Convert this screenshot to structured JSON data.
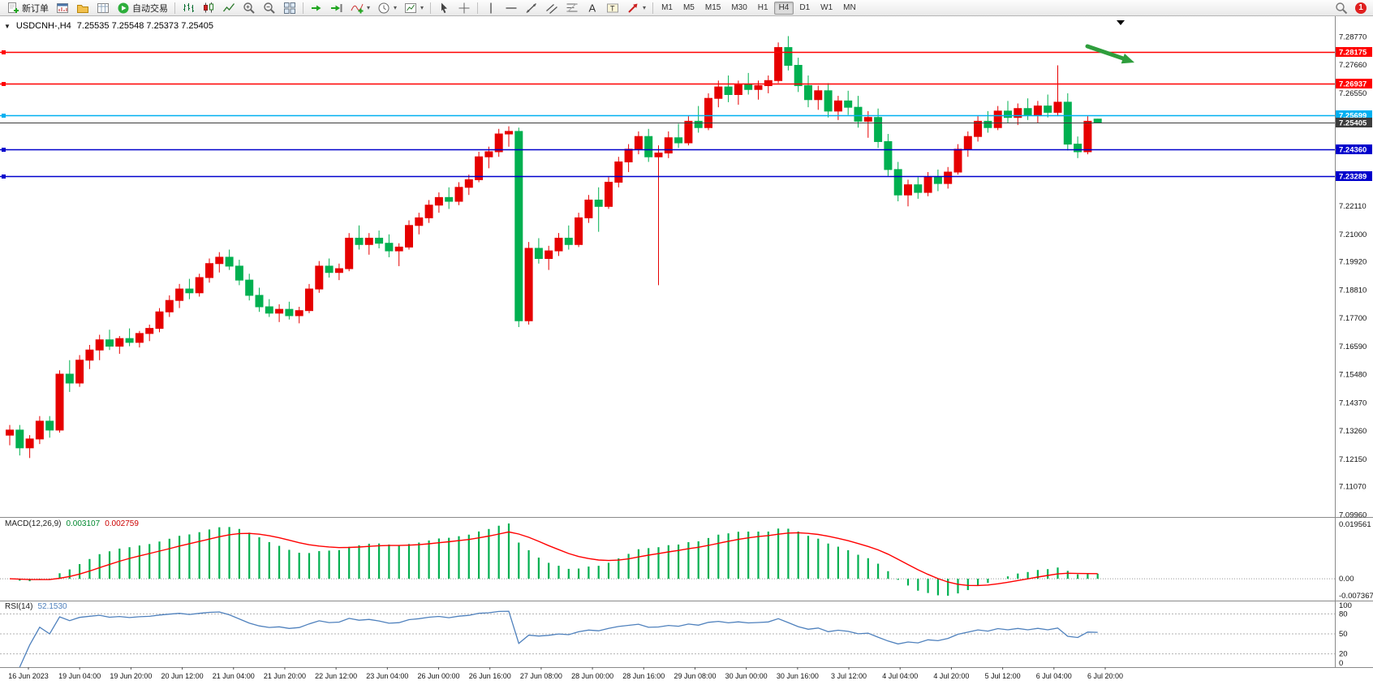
{
  "toolbar": {
    "groups": [
      {
        "items": [
          {
            "name": "new-order",
            "glyph": "doc-plus",
            "label": "新订单"
          },
          {
            "name": "charts",
            "glyph": "chart-window"
          },
          {
            "name": "profiles",
            "glyph": "folder"
          },
          {
            "name": "data-window",
            "glyph": "grid-window"
          },
          {
            "name": "autotrading",
            "glyph": "play",
            "label": "自动交易"
          }
        ]
      },
      {
        "items": [
          {
            "name": "bar-chart",
            "glyph": "bars"
          },
          {
            "name": "candlestick-chart",
            "glyph": "candles"
          },
          {
            "name": "line-chart",
            "glyph": "polyline"
          },
          {
            "name": "zoom-in",
            "glyph": "zoom-plus"
          },
          {
            "name": "zoom-out",
            "glyph": "zoom-minus"
          },
          {
            "name": "tile-windows",
            "glyph": "tiles"
          }
        ]
      },
      {
        "items": [
          {
            "name": "auto-scroll",
            "glyph": "scroll-arrow"
          },
          {
            "name": "chart-shift",
            "glyph": "shift-arrow"
          },
          {
            "name": "indicators",
            "glyph": "indicator-plus",
            "dropdown": true
          },
          {
            "name": "periods",
            "glyph": "clock",
            "dropdown": true
          },
          {
            "name": "templates",
            "glyph": "template",
            "dropdown": true
          }
        ]
      },
      {
        "items": [
          {
            "name": "cursor",
            "glyph": "cursor"
          },
          {
            "name": "crosshair",
            "glyph": "crosshair"
          }
        ]
      },
      {
        "items": [
          {
            "name": "vertical-line",
            "glyph": "vline"
          },
          {
            "name": "horizontal-line",
            "glyph": "hline"
          },
          {
            "name": "trendline",
            "glyph": "tline"
          },
          {
            "name": "equidistant-channel",
            "glyph": "channel"
          },
          {
            "name": "fibonacci",
            "glyph": "fibo"
          },
          {
            "name": "text",
            "glyph": "text"
          },
          {
            "name": "text-label",
            "glyph": "text-label"
          },
          {
            "name": "arrows",
            "glyph": "arrow",
            "dropdown": true
          }
        ]
      }
    ],
    "timeframes": [
      "M1",
      "M5",
      "M15",
      "M30",
      "H1",
      "H4",
      "D1",
      "W1",
      "MN"
    ],
    "active_timeframe": "H4",
    "notification_count": "1"
  },
  "chart": {
    "title": "USDCNH-,H4",
    "ohlc": "7.25535 7.25548 7.25373 7.25405"
  },
  "chart_data": {
    "type": "candlestick",
    "symbol": "USDCNH-",
    "period": "H4",
    "up_color": "#e60000",
    "down_color": "#00b050",
    "price_axis": {
      "min": 7.0988,
      "max": 7.2939,
      "labels": [
        "7.28770",
        "7.27660",
        "7.26550",
        "7.22110",
        "7.21000",
        "7.19920",
        "7.18810",
        "7.17700",
        "7.16590",
        "7.15480",
        "7.14370",
        "7.13260",
        "7.12150",
        "7.11070",
        "7.09960"
      ]
    },
    "levels": [
      {
        "price": 7.28175,
        "color": "#ff0000",
        "label": "7.28175"
      },
      {
        "price": 7.26937,
        "color": "#ff0000",
        "label": "7.26937"
      },
      {
        "price": 7.25699,
        "color": "#00b0f0",
        "label": "7.25699"
      },
      {
        "price": 7.25405,
        "color": "#3c3c3c",
        "label": "7.25405",
        "type": "bid"
      },
      {
        "price": 7.2436,
        "color": "#0000cc",
        "label": "7.24360"
      },
      {
        "price": 7.23289,
        "color": "#0000cc",
        "label": "7.23289"
      }
    ],
    "annotations": {
      "trend_arrow_color": "#2e9e3c"
    },
    "indicators": [
      {
        "label": "MACD(12,26,9)",
        "value1": "0.003107",
        "value2": "0.002759",
        "axis_labels": [
          "0.019561",
          "0.00",
          "-0.007367"
        ],
        "histogram_color": "#00b050",
        "signal_color": "#ff0000"
      },
      {
        "label": "RSI(14)",
        "value1": "52.1530",
        "axis_labels": [
          "100",
          "80",
          "50",
          "20",
          "0"
        ],
        "levels": [
          80,
          50,
          20
        ],
        "line_color": "#4f81bd"
      }
    ],
    "time_labels": [
      "16 Jun 2023",
      "19 Jun 04:00",
      "19 Jun 20:00",
      "20 Jun 12:00",
      "21 Jun 04:00",
      "21 Jun 20:00",
      "22 Jun 12:00",
      "23 Jun 04:00",
      "26 Jun 00:00",
      "26 Jun 16:00",
      "27 Jun 08:00",
      "28 Jun 00:00",
      "28 Jun 16:00",
      "29 Jun 08:00",
      "30 Jun 00:00",
      "30 Jun 16:00",
      "3 Jul 12:00",
      "4 Jul 04:00",
      "4 Jul 20:00",
      "5 Jul 12:00",
      "6 Jul 04:00",
      "6 Jul 20:00"
    ],
    "candles": [
      [
        7.131,
        7.135,
        7.127,
        7.133
      ],
      [
        7.133,
        7.135,
        7.123,
        7.126
      ],
      [
        7.126,
        7.131,
        7.122,
        7.1295
      ],
      [
        7.1295,
        7.1385,
        7.1275,
        7.1365
      ],
      [
        7.1365,
        7.1385,
        7.13,
        7.133
      ],
      [
        7.133,
        7.1565,
        7.132,
        7.155
      ],
      [
        7.155,
        7.1605,
        7.148,
        7.1515
      ],
      [
        7.1515,
        7.1625,
        7.15,
        7.1605
      ],
      [
        7.1605,
        7.1665,
        7.157,
        7.1645
      ],
      [
        7.1645,
        7.1705,
        7.1605,
        7.1685
      ],
      [
        7.1685,
        7.1725,
        7.1645,
        7.166
      ],
      [
        7.166,
        7.17,
        7.163,
        7.169
      ],
      [
        7.169,
        7.173,
        7.166,
        7.1675
      ],
      [
        7.1675,
        7.172,
        7.1655,
        7.171
      ],
      [
        7.171,
        7.1745,
        7.168,
        7.173
      ],
      [
        7.173,
        7.181,
        7.1715,
        7.1795
      ],
      [
        7.1795,
        7.186,
        7.1775,
        7.184
      ],
      [
        7.184,
        7.1905,
        7.181,
        7.1885
      ],
      [
        7.1885,
        7.1925,
        7.1845,
        7.187
      ],
      [
        7.187,
        7.1945,
        7.1855,
        7.193
      ],
      [
        7.193,
        7.2005,
        7.191,
        7.1985
      ],
      [
        7.1985,
        7.203,
        7.195,
        7.201
      ],
      [
        7.201,
        7.204,
        7.196,
        7.1975
      ],
      [
        7.1975,
        7.2,
        7.19,
        7.192
      ],
      [
        7.192,
        7.1945,
        7.184,
        7.186
      ],
      [
        7.186,
        7.189,
        7.1795,
        7.1815
      ],
      [
        7.1815,
        7.1845,
        7.1775,
        7.179
      ],
      [
        7.179,
        7.1825,
        7.1755,
        7.1805
      ],
      [
        7.1805,
        7.1835,
        7.1765,
        7.178
      ],
      [
        7.178,
        7.1815,
        7.175,
        7.18
      ],
      [
        7.18,
        7.1905,
        7.179,
        7.1885
      ],
      [
        7.1885,
        7.1995,
        7.187,
        7.1975
      ],
      [
        7.1975,
        7.2005,
        7.193,
        7.195
      ],
      [
        7.195,
        7.1985,
        7.192,
        7.1965
      ],
      [
        7.1965,
        7.2105,
        7.1955,
        7.2085
      ],
      [
        7.2085,
        7.2135,
        7.204,
        7.206
      ],
      [
        7.206,
        7.2105,
        7.202,
        7.2085
      ],
      [
        7.2085,
        7.2115,
        7.2045,
        7.2065
      ],
      [
        7.2065,
        7.21,
        7.201,
        7.2035
      ],
      [
        7.2035,
        7.2065,
        7.1975,
        7.205
      ],
      [
        7.205,
        7.2155,
        7.204,
        7.2135
      ],
      [
        7.2135,
        7.2185,
        7.21,
        7.2165
      ],
      [
        7.2165,
        7.2235,
        7.2145,
        7.2215
      ],
      [
        7.2215,
        7.2265,
        7.2185,
        7.2245
      ],
      [
        7.2245,
        7.2285,
        7.22,
        7.223
      ],
      [
        7.223,
        7.2305,
        7.2215,
        7.2285
      ],
      [
        7.2285,
        7.2335,
        7.2255,
        7.2315
      ],
      [
        7.2315,
        7.2425,
        7.2305,
        7.2405
      ],
      [
        7.2405,
        7.2445,
        7.236,
        7.2425
      ],
      [
        7.2425,
        7.2515,
        7.2405,
        7.2495
      ],
      [
        7.2495,
        7.2525,
        7.2445,
        7.2505
      ],
      [
        7.2505,
        7.252,
        7.1735,
        7.176
      ],
      [
        7.176,
        7.207,
        7.1745,
        7.2045
      ],
      [
        7.2045,
        7.2085,
        7.1985,
        7.2005
      ],
      [
        7.2005,
        7.2055,
        7.196,
        7.2035
      ],
      [
        7.2035,
        7.2105,
        7.2015,
        7.2085
      ],
      [
        7.2085,
        7.2135,
        7.204,
        7.206
      ],
      [
        7.206,
        7.2185,
        7.205,
        7.2165
      ],
      [
        7.2165,
        7.2255,
        7.2145,
        7.2235
      ],
      [
        7.2235,
        7.2285,
        7.211,
        7.221
      ],
      [
        7.221,
        7.2325,
        7.22,
        7.2305
      ],
      [
        7.2305,
        7.2405,
        7.2285,
        7.2385
      ],
      [
        7.2385,
        7.2455,
        7.2345,
        7.2435
      ],
      [
        7.2435,
        7.2505,
        7.2415,
        7.2485
      ],
      [
        7.2485,
        7.2515,
        7.2385,
        7.2405
      ],
      [
        7.2405,
        7.245,
        7.19,
        7.242
      ],
      [
        7.242,
        7.2505,
        7.24,
        7.248
      ],
      [
        7.248,
        7.2535,
        7.244,
        7.246
      ],
      [
        7.246,
        7.2565,
        7.245,
        7.2545
      ],
      [
        7.2545,
        7.2605,
        7.25,
        7.252
      ],
      [
        7.252,
        7.2655,
        7.251,
        7.2635
      ],
      [
        7.2635,
        7.2705,
        7.26,
        7.268
      ],
      [
        7.268,
        7.2725,
        7.262,
        7.265
      ],
      [
        7.265,
        7.2705,
        7.261,
        7.269
      ],
      [
        7.269,
        7.2735,
        7.265,
        7.267
      ],
      [
        7.267,
        7.2705,
        7.263,
        7.2685
      ],
      [
        7.2685,
        7.2725,
        7.2655,
        7.2705
      ],
      [
        7.2705,
        7.2855,
        7.2695,
        7.2835
      ],
      [
        7.2835,
        7.288,
        7.2745,
        7.2765
      ],
      [
        7.2765,
        7.2795,
        7.266,
        7.2685
      ],
      [
        7.2685,
        7.2725,
        7.26,
        7.263
      ],
      [
        7.263,
        7.2685,
        7.259,
        7.2665
      ],
      [
        7.2665,
        7.2695,
        7.256,
        7.2585
      ],
      [
        7.2585,
        7.2645,
        7.255,
        7.2625
      ],
      [
        7.2625,
        7.2665,
        7.257,
        7.26
      ],
      [
        7.26,
        7.2645,
        7.252,
        7.2545
      ],
      [
        7.2545,
        7.2585,
        7.248,
        7.256
      ],
      [
        7.256,
        7.2595,
        7.244,
        7.2465
      ],
      [
        7.2465,
        7.2495,
        7.233,
        7.2355
      ],
      [
        7.2355,
        7.2385,
        7.223,
        7.2255
      ],
      [
        7.2255,
        7.2315,
        7.221,
        7.2295
      ],
      [
        7.2295,
        7.2325,
        7.224,
        7.2265
      ],
      [
        7.2265,
        7.2345,
        7.225,
        7.2325
      ],
      [
        7.2325,
        7.2355,
        7.227,
        7.23
      ],
      [
        7.23,
        7.2365,
        7.228,
        7.2345
      ],
      [
        7.2345,
        7.2455,
        7.2335,
        7.2435
      ],
      [
        7.2435,
        7.2505,
        7.2405,
        7.2485
      ],
      [
        7.2485,
        7.2565,
        7.2465,
        7.2545
      ],
      [
        7.2545,
        7.2585,
        7.25,
        7.252
      ],
      [
        7.252,
        7.2605,
        7.251,
        7.2585
      ],
      [
        7.2585,
        7.2625,
        7.254,
        7.256
      ],
      [
        7.256,
        7.2615,
        7.253,
        7.2595
      ],
      [
        7.2595,
        7.2635,
        7.255,
        7.257
      ],
      [
        7.257,
        7.2625,
        7.254,
        7.2605
      ],
      [
        7.2605,
        7.265,
        7.256,
        7.258
      ],
      [
        7.258,
        7.2765,
        7.2565,
        7.262
      ],
      [
        7.262,
        7.2655,
        7.243,
        7.2455
      ],
      [
        7.2455,
        7.2485,
        7.24,
        7.2425
      ],
      [
        7.2425,
        7.2565,
        7.2415,
        7.2545
      ],
      [
        7.25535,
        7.25548,
        7.25373,
        7.25405
      ]
    ]
  }
}
